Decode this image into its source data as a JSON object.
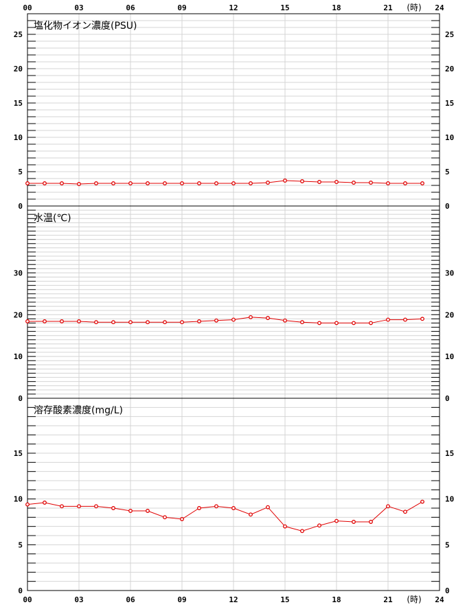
{
  "chart_data": {
    "type": "line",
    "x_ticks": [
      "00",
      "03",
      "06",
      "09",
      "12",
      "15",
      "18",
      "21",
      "24"
    ],
    "x_unit": "(時)",
    "series_color": "#e00000",
    "panels": [
      {
        "title": "塩化物イオン濃度(PSU)",
        "ylim": [
          0,
          28
        ],
        "y_ticks": [
          0,
          5,
          10,
          15,
          20,
          25
        ],
        "hours": [
          0,
          1,
          2,
          3,
          4,
          5,
          6,
          7,
          8,
          9,
          10,
          11,
          12,
          13,
          14,
          15,
          16,
          17,
          18,
          19,
          20,
          21,
          22,
          23
        ],
        "values": [
          3.3,
          3.3,
          3.3,
          3.2,
          3.3,
          3.3,
          3.3,
          3.3,
          3.3,
          3.3,
          3.3,
          3.3,
          3.3,
          3.3,
          3.4,
          3.7,
          3.6,
          3.5,
          3.5,
          3.4,
          3.4,
          3.3,
          3.3,
          3.3
        ]
      },
      {
        "title": "水温(℃)",
        "ylim": [
          0,
          46
        ],
        "y_ticks": [
          0,
          10,
          20,
          30
        ],
        "hours": [
          0,
          1,
          2,
          3,
          4,
          5,
          6,
          7,
          8,
          9,
          10,
          11,
          12,
          13,
          14,
          15,
          16,
          17,
          18,
          19,
          20,
          21,
          22,
          23
        ],
        "values": [
          18.4,
          18.4,
          18.4,
          18.4,
          18.2,
          18.2,
          18.2,
          18.2,
          18.2,
          18.2,
          18.4,
          18.6,
          18.8,
          19.4,
          19.2,
          18.6,
          18.2,
          18.0,
          18.0,
          18.0,
          18.0,
          18.8,
          18.8,
          19.0
        ]
      },
      {
        "title": "溶存酸素濃度(mg/L)",
        "ylim": [
          0,
          21
        ],
        "y_ticks": [
          0,
          5,
          10,
          15
        ],
        "hours": [
          0,
          1,
          2,
          3,
          4,
          5,
          6,
          7,
          8,
          9,
          10,
          11,
          12,
          13,
          14,
          15,
          16,
          17,
          18,
          19,
          20,
          21,
          22,
          23
        ],
        "values": [
          9.4,
          9.6,
          9.2,
          9.2,
          9.2,
          9.0,
          8.7,
          8.7,
          8.0,
          7.8,
          9.0,
          9.2,
          9.0,
          8.3,
          9.1,
          7.0,
          6.5,
          7.1,
          7.6,
          7.5,
          7.5,
          9.2,
          8.6,
          9.7
        ]
      }
    ]
  }
}
